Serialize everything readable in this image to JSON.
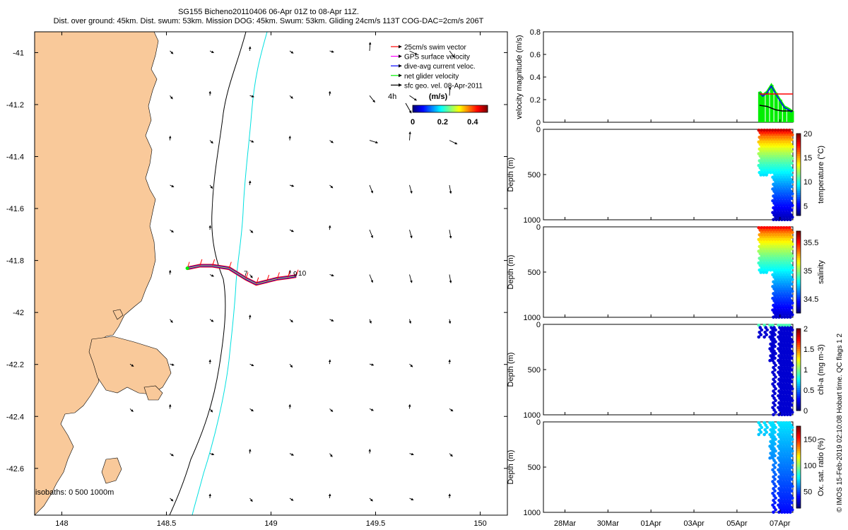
{
  "title_line1": "SG155 Bicheno20110406 06-Apr 01Z to 08-Apr 11Z.",
  "title_line2": "Dist. over ground: 45km. Dist. swum: 53km. Mission DOG: 45km. Swum: 53km. Gliding 24cm/s 113T COG-DAC=2cm/s 206T",
  "credit": "© IMOS 15-Feb-2019 02:10:08 Hobart time. QC flags 1  2",
  "chart_data": [
    {
      "type": "map",
      "x_ticks": [
        "148",
        "148.5",
        "149",
        "149.5",
        "150"
      ],
      "x_values": [
        148,
        148.5,
        149,
        149.5,
        150
      ],
      "xlim": [
        147.87,
        150.13
      ],
      "y_ticks": [
        "-41",
        "-41.2",
        "-41.4",
        "-41.6",
        "-41.8",
        "-42",
        "-42.2",
        "-42.4",
        "-42.6"
      ],
      "y_values": [
        -41,
        -41.2,
        -41.4,
        -41.6,
        -41.8,
        -42,
        -42.2,
        -42.4,
        -42.6
      ],
      "ylim": [
        -42.78,
        -40.92
      ],
      "land_color": "#f9c99a",
      "isobaths_label": "isobaths: 0   500  1000m",
      "isobath_colors": {
        "500": "#000000",
        "1000": "#00e0e0"
      },
      "legend": [
        {
          "label": "25cm/s swim vector",
          "color": "#ff0000"
        },
        {
          "label": "GPS surface velocity",
          "color": "#ff00ff"
        },
        {
          "label": "dive-avg current veloc.",
          "color": "#0000ff"
        },
        {
          "label": "net glider velocity",
          "color": "#00ee00"
        },
        {
          "label": "sfc geo. vel. 08-Apr-2011",
          "color": "#000000"
        }
      ],
      "colorbar_title": "(m/s)",
      "colorbar_ticks": [
        "0",
        "0.2",
        "0.4"
      ],
      "colorbar_range": [
        0,
        0.5
      ],
      "ref_arrow_label": "4h",
      "track_labels": [
        "7",
        "9",
        "10"
      ],
      "track_lon": [
        148.6,
        148.66,
        148.72,
        148.8,
        148.88,
        148.93,
        148.98,
        149.03,
        149.08,
        149.12
      ],
      "track_lat": [
        -41.83,
        -41.82,
        -41.82,
        -41.83,
        -41.87,
        -41.89,
        -41.88,
        -41.87,
        -41.865,
        -41.86
      ]
    },
    {
      "type": "line",
      "ylabel": "velocity magnitude (m/s)",
      "yticks": [
        "0",
        "0.2",
        "0.4",
        "0.6",
        "0.8"
      ],
      "ylim": [
        0,
        0.8
      ]
    },
    {
      "type": "scatter",
      "ylabel": "Depth (m)",
      "yticks": [
        "0",
        "500",
        "1000"
      ],
      "colorbar_label": "temperature (°C)",
      "colorbar_ticks": [
        "5",
        "10",
        "15",
        "20"
      ],
      "colorbar_range": [
        3,
        20
      ]
    },
    {
      "type": "scatter",
      "ylabel": "Depth (m)",
      "yticks": [
        "0",
        "500",
        "1000"
      ],
      "colorbar_label": "salinity",
      "colorbar_ticks": [
        "34.5",
        "35",
        "35.5"
      ],
      "colorbar_range": [
        34.25,
        35.7
      ]
    },
    {
      "type": "scatter",
      "ylabel": "Depth (m)",
      "yticks": [
        "0",
        "500",
        "1000"
      ],
      "colorbar_label": "chl-a (mg m-3)",
      "colorbar_ticks": [
        "0",
        "0.5",
        "1",
        "1.5",
        "2"
      ],
      "colorbar_range": [
        0,
        2
      ]
    },
    {
      "type": "scatter",
      "ylabel": "Depth (m)",
      "yticks": [
        "0",
        "500",
        "1000"
      ],
      "colorbar_label": "Ox. sat. ratio (%)",
      "colorbar_ticks": [
        "50",
        "100",
        "150"
      ],
      "colorbar_range": [
        18,
        175
      ]
    },
    {
      "type": "time_axis",
      "xticks": [
        "28Mar",
        "30Mar",
        "01Apr",
        "03Apr",
        "05Apr",
        "07Apr"
      ]
    }
  ]
}
